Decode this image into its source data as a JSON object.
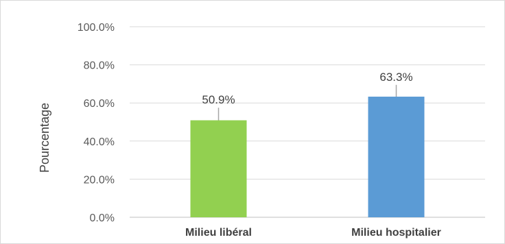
{
  "chart_data": {
    "type": "bar",
    "categories": [
      "Milieu libéral",
      "Milieu hospitalier"
    ],
    "values": [
      50.9,
      63.3
    ],
    "error_upper": [
      57.5,
      69.5
    ],
    "data_labels": [
      "50.9%",
      "63.3%"
    ],
    "colors": [
      "#92d050",
      "#5b9bd5"
    ],
    "ylabel": "Pourcentage",
    "xlabel": "",
    "title": "",
    "ylim": [
      0,
      100
    ],
    "yticks": [
      0,
      20,
      40,
      60,
      80,
      100
    ],
    "ytick_labels": [
      "0.0%",
      "20.0%",
      "40.0%",
      "60.0%",
      "80.0%",
      "100.0%"
    ],
    "grid": true,
    "legend": "none"
  }
}
